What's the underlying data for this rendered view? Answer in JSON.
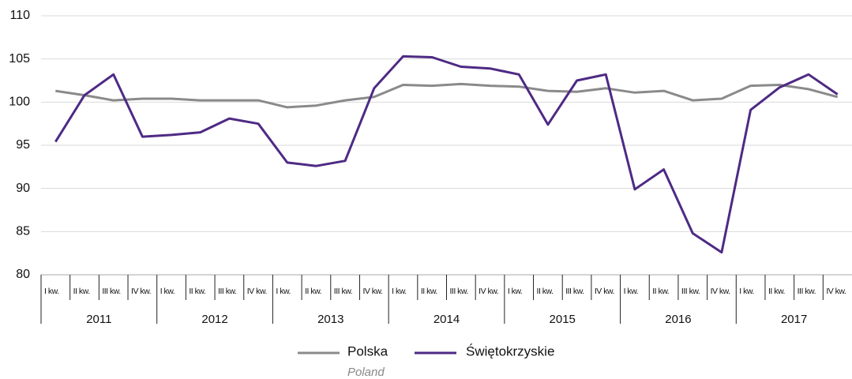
{
  "chart_data": {
    "type": "line",
    "categories": [
      "I kw.",
      "II kw.",
      "III kw.",
      "IV kw.",
      "I kw.",
      "II kw.",
      "III kw.",
      "IV kw.",
      "I kw.",
      "II kw.",
      "III kw.",
      "IV kw.",
      "I kw.",
      "II kw.",
      "III kw.",
      "IV kw.",
      "I kw.",
      "II kw.",
      "III kw.",
      "IV kw.",
      "I kw.",
      "II kw.",
      "III kw.",
      "IV kw.",
      "I kw.",
      "II kw.",
      "III kw.",
      "IV kw."
    ],
    "year_groups": [
      "2011",
      "2012",
      "2013",
      "2014",
      "2015",
      "2016",
      "2017"
    ],
    "series": [
      {
        "name": "Polska",
        "name_translation": "Poland",
        "color": "#8a8a8a",
        "values": [
          101.3,
          100.8,
          100.2,
          100.4,
          100.4,
          100.2,
          100.2,
          100.2,
          99.4,
          99.6,
          100.2,
          100.6,
          102.0,
          101.9,
          102.1,
          101.9,
          101.8,
          101.3,
          101.2,
          101.6,
          101.1,
          101.3,
          100.2,
          100.4,
          101.9,
          102.0,
          101.5,
          100.6
        ]
      },
      {
        "name": "Świętokrzyskie",
        "color": "#4e2a84",
        "values": [
          95.4,
          100.8,
          103.2,
          96.0,
          96.2,
          96.5,
          98.1,
          97.5,
          93.0,
          92.6,
          93.2,
          101.6,
          105.3,
          105.2,
          104.1,
          103.9,
          103.2,
          97.4,
          102.5,
          103.2,
          89.9,
          92.2,
          84.8,
          82.6,
          99.1,
          101.7,
          103.2,
          100.9
        ]
      }
    ],
    "ylim": [
      80,
      110
    ],
    "yticks": [
      80,
      85,
      90,
      95,
      100,
      105,
      110
    ],
    "grid": true,
    "legend": "bottom"
  }
}
